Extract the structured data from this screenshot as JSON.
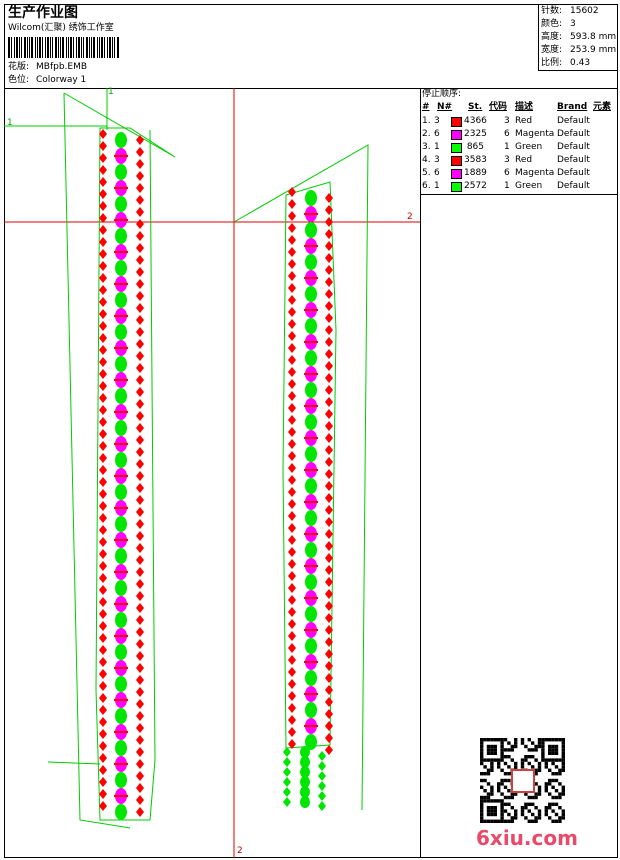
{
  "header": {
    "title": "生产作业图",
    "company": "Wilcom(汇聚) 绣饰工作室",
    "design_label": "花版:",
    "design": "MBfpb.EMB",
    "colorway_label": "色位:",
    "colorway": "Colorway 1"
  },
  "stats": [
    {
      "label": "针数:",
      "value": "15602"
    },
    {
      "label": "颜色:",
      "value": "3"
    },
    {
      "label": "高度:",
      "value": "593.8 mm"
    },
    {
      "label": "宽度:",
      "value": "253.9 mm"
    },
    {
      "label": "比例:",
      "value": "0.43"
    }
  ],
  "stop_sequence": {
    "title": "停止顺序:",
    "columns": [
      "#",
      "N#",
      "St.",
      "代码",
      "描述",
      "Brand",
      "元素"
    ],
    "rows": [
      {
        "index": "1.",
        "needle": "3",
        "stitches": "4366",
        "code": "3",
        "description": "Red",
        "brand": "Default",
        "color": "#ff0000"
      },
      {
        "index": "2.",
        "needle": "6",
        "stitches": "2325",
        "code": "6",
        "description": "Magenta",
        "brand": "Default",
        "color": "#ff00ff"
      },
      {
        "index": "3.",
        "needle": "1",
        "stitches": "865",
        "code": "1",
        "description": "Green",
        "brand": "Default",
        "color": "#00ff00"
      },
      {
        "index": "4.",
        "needle": "3",
        "stitches": "3583",
        "code": "3",
        "description": "Red",
        "brand": "Default",
        "color": "#ff0000"
      },
      {
        "index": "5.",
        "needle": "6",
        "stitches": "1889",
        "code": "6",
        "description": "Magenta",
        "brand": "Default",
        "color": "#ff00ff"
      },
      {
        "index": "6.",
        "needle": "1",
        "stitches": "2572",
        "code": "1",
        "description": "Green",
        "brand": "Default",
        "color": "#00ff00"
      }
    ]
  },
  "markers": {
    "green_vertical": "1",
    "green_horizontal": "1",
    "red_horizontal": "2",
    "red_vertical": "2"
  },
  "watermark": "6xiu.com"
}
